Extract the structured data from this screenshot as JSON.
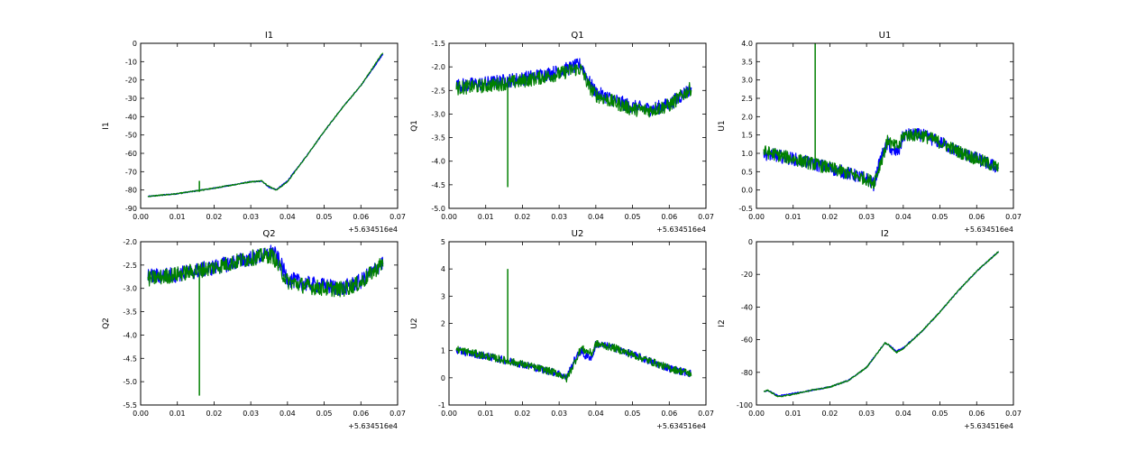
{
  "figure": {
    "x_offset_text": "+5.634516e4",
    "colors": {
      "series_a": "#0000ff",
      "series_b": "#008000"
    }
  },
  "chart_data": [
    {
      "type": "line",
      "id": "I1",
      "title": "I1",
      "xlabel": "",
      "ylabel": "I1",
      "xlim": [
        0.0,
        0.07
      ],
      "ylim": [
        -90,
        0
      ],
      "xticks": [
        "0.00",
        "0.01",
        "0.02",
        "0.03",
        "0.04",
        "0.05",
        "0.06",
        "0.07"
      ],
      "yticks": [
        "-90",
        "-80",
        "-70",
        "-60",
        "-50",
        "-40",
        "-30",
        "-20",
        "-10",
        "0"
      ],
      "noise": 0.3,
      "series": [
        {
          "name": "blue",
          "color": "#0000ff",
          "x": [
            0.002,
            0.01,
            0.02,
            0.03,
            0.033,
            0.035,
            0.037,
            0.04,
            0.045,
            0.05,
            0.055,
            0.06,
            0.066
          ],
          "y": [
            -83.5,
            -82,
            -79,
            -75.5,
            -75.2,
            -78.5,
            -79.8,
            -75,
            -62,
            -48,
            -35,
            -23,
            -6
          ]
        },
        {
          "name": "green",
          "color": "#008000",
          "x": [
            0.002,
            0.01,
            0.02,
            0.03,
            0.033,
            0.035,
            0.037,
            0.04,
            0.045,
            0.05,
            0.055,
            0.06,
            0.066
          ],
          "y": [
            -83.5,
            -82,
            -79,
            -75.5,
            -75,
            -78,
            -80,
            -75.5,
            -62,
            -48,
            -35,
            -23,
            -5
          ]
        }
      ],
      "spikes": [
        {
          "x": 0.016,
          "y1": -81,
          "y2": -75
        }
      ]
    },
    {
      "type": "line",
      "id": "Q1",
      "title": "Q1",
      "xlabel": "",
      "ylabel": "Q1",
      "xlim": [
        0.0,
        0.07
      ],
      "ylim": [
        -5.0,
        -1.5
      ],
      "xticks": [
        "0.00",
        "0.01",
        "0.02",
        "0.03",
        "0.04",
        "0.05",
        "0.06",
        "0.07"
      ],
      "yticks": [
        "-5.0",
        "-4.5",
        "-4.0",
        "-3.5",
        "-3.0",
        "-2.5",
        "-2.0",
        "-1.5"
      ],
      "noise": 0.15,
      "series": [
        {
          "name": "blue",
          "color": "#0000ff",
          "x": [
            0.002,
            0.01,
            0.02,
            0.03,
            0.034,
            0.036,
            0.038,
            0.04,
            0.045,
            0.05,
            0.055,
            0.06,
            0.066
          ],
          "y": [
            -2.4,
            -2.35,
            -2.25,
            -2.1,
            -2.0,
            -1.95,
            -2.3,
            -2.55,
            -2.7,
            -2.85,
            -2.9,
            -2.8,
            -2.45
          ]
        },
        {
          "name": "green",
          "color": "#008000",
          "x": [
            0.002,
            0.01,
            0.02,
            0.03,
            0.034,
            0.036,
            0.038,
            0.04,
            0.045,
            0.05,
            0.055,
            0.06,
            0.066
          ],
          "y": [
            -2.45,
            -2.4,
            -2.3,
            -2.15,
            -2.05,
            -2.05,
            -2.4,
            -2.6,
            -2.75,
            -2.9,
            -2.92,
            -2.82,
            -2.45
          ]
        }
      ],
      "spikes": [
        {
          "x": 0.016,
          "y1": -4.55,
          "y2": -2.3
        }
      ]
    },
    {
      "type": "line",
      "id": "U1",
      "title": "U1",
      "xlabel": "",
      "ylabel": "U1",
      "xlim": [
        0.0,
        0.07
      ],
      "ylim": [
        -0.5,
        4.0
      ],
      "xticks": [
        "0.00",
        "0.01",
        "0.02",
        "0.03",
        "0.04",
        "0.05",
        "0.06",
        "0.07"
      ],
      "yticks": [
        "-0.5",
        "0.0",
        "0.5",
        "1.0",
        "1.5",
        "2.0",
        "2.5",
        "3.0",
        "3.5",
        "4.0"
      ],
      "noise": 0.18,
      "series": [
        {
          "name": "blue",
          "color": "#0000ff",
          "x": [
            0.002,
            0.01,
            0.02,
            0.03,
            0.032,
            0.034,
            0.036,
            0.037,
            0.039,
            0.04,
            0.045,
            0.05,
            0.055,
            0.06,
            0.066
          ],
          "y": [
            1.0,
            0.85,
            0.6,
            0.3,
            0.15,
            0.9,
            1.3,
            1.0,
            1.1,
            1.5,
            1.5,
            1.3,
            1.05,
            0.85,
            0.6
          ]
        },
        {
          "name": "green",
          "color": "#008000",
          "x": [
            0.002,
            0.01,
            0.02,
            0.03,
            0.032,
            0.034,
            0.036,
            0.037,
            0.039,
            0.04,
            0.045,
            0.05,
            0.055,
            0.06,
            0.066
          ],
          "y": [
            1.05,
            0.85,
            0.6,
            0.3,
            0.2,
            0.8,
            1.4,
            1.2,
            1.2,
            1.5,
            1.5,
            1.3,
            1.05,
            0.85,
            0.6
          ]
        }
      ],
      "spikes": [
        {
          "x": 0.016,
          "y1": 0.7,
          "y2": 4.0
        }
      ]
    },
    {
      "type": "line",
      "id": "Q2",
      "title": "Q2",
      "xlabel": "",
      "ylabel": "Q2",
      "xlim": [
        0.0,
        0.07
      ],
      "ylim": [
        -5.5,
        -2.0
      ],
      "xticks": [
        "0.00",
        "0.01",
        "0.02",
        "0.03",
        "0.04",
        "0.05",
        "0.06",
        "0.07"
      ],
      "yticks": [
        "-5.5",
        "-5.0",
        "-4.5",
        "-4.0",
        "-3.5",
        "-3.0",
        "-2.5",
        "-2.0"
      ],
      "noise": 0.17,
      "series": [
        {
          "name": "blue",
          "color": "#0000ff",
          "x": [
            0.002,
            0.01,
            0.02,
            0.03,
            0.034,
            0.036,
            0.038,
            0.04,
            0.045,
            0.05,
            0.055,
            0.06,
            0.066
          ],
          "y": [
            -2.75,
            -2.7,
            -2.55,
            -2.35,
            -2.3,
            -2.2,
            -2.45,
            -2.8,
            -2.9,
            -2.95,
            -3.0,
            -2.85,
            -2.45
          ]
        },
        {
          "name": "green",
          "color": "#008000",
          "x": [
            0.002,
            0.01,
            0.02,
            0.03,
            0.034,
            0.036,
            0.038,
            0.04,
            0.045,
            0.05,
            0.055,
            0.06,
            0.066
          ],
          "y": [
            -2.8,
            -2.7,
            -2.55,
            -2.35,
            -2.3,
            -2.3,
            -2.6,
            -2.85,
            -2.95,
            -3.0,
            -3.02,
            -2.88,
            -2.45
          ]
        }
      ],
      "spikes": [
        {
          "x": 0.016,
          "y1": -5.3,
          "y2": -2.6
        }
      ]
    },
    {
      "type": "line",
      "id": "U2",
      "title": "U2",
      "xlabel": "",
      "ylabel": "U2",
      "xlim": [
        0.0,
        0.07
      ],
      "ylim": [
        -1,
        5
      ],
      "xticks": [
        "0.00",
        "0.01",
        "0.02",
        "0.03",
        "0.04",
        "0.05",
        "0.06",
        "0.07"
      ],
      "yticks": [
        "-1",
        "0",
        "1",
        "2",
        "3",
        "4",
        "5"
      ],
      "noise": 0.14,
      "series": [
        {
          "name": "blue",
          "color": "#0000ff",
          "x": [
            0.002,
            0.01,
            0.02,
            0.03,
            0.032,
            0.034,
            0.036,
            0.037,
            0.039,
            0.04,
            0.045,
            0.05,
            0.055,
            0.06,
            0.066
          ],
          "y": [
            1.0,
            0.8,
            0.5,
            0.15,
            0.0,
            0.6,
            1.0,
            0.8,
            0.75,
            1.25,
            1.1,
            0.85,
            0.6,
            0.35,
            0.15
          ]
        },
        {
          "name": "green",
          "color": "#008000",
          "x": [
            0.002,
            0.01,
            0.02,
            0.03,
            0.032,
            0.034,
            0.036,
            0.037,
            0.039,
            0.04,
            0.045,
            0.05,
            0.055,
            0.06,
            0.066
          ],
          "y": [
            1.05,
            0.8,
            0.5,
            0.15,
            -0.05,
            0.5,
            1.1,
            1.0,
            0.9,
            1.25,
            1.1,
            0.85,
            0.6,
            0.35,
            0.15
          ]
        }
      ],
      "spikes": [
        {
          "x": 0.016,
          "y1": 0.5,
          "y2": 4.0
        }
      ]
    },
    {
      "type": "line",
      "id": "I2",
      "title": "I2",
      "xlabel": "",
      "ylabel": "I2",
      "xlim": [
        0.0,
        0.07
      ],
      "ylim": [
        -100,
        0
      ],
      "xticks": [
        "0.00",
        "0.01",
        "0.02",
        "0.03",
        "0.04",
        "0.05",
        "0.06",
        "0.07"
      ],
      "yticks": [
        "-100",
        "-80",
        "-60",
        "-40",
        "-20",
        "0"
      ],
      "noise": 0.4,
      "series": [
        {
          "name": "blue",
          "color": "#0000ff",
          "x": [
            0.002,
            0.003,
            0.006,
            0.01,
            0.015,
            0.02,
            0.025,
            0.03,
            0.033,
            0.035,
            0.036,
            0.038,
            0.04,
            0.045,
            0.05,
            0.055,
            0.06,
            0.066
          ],
          "y": [
            -92,
            -91,
            -94.5,
            -93,
            -91,
            -89,
            -85,
            -77,
            -68,
            -62,
            -63,
            -67,
            -65,
            -55,
            -43,
            -30,
            -18,
            -6
          ]
        },
        {
          "name": "green",
          "color": "#008000",
          "x": [
            0.002,
            0.003,
            0.006,
            0.01,
            0.015,
            0.02,
            0.025,
            0.03,
            0.033,
            0.035,
            0.036,
            0.038,
            0.04,
            0.045,
            0.05,
            0.055,
            0.06,
            0.066
          ],
          "y": [
            -92,
            -91,
            -95,
            -93.5,
            -91,
            -89,
            -85,
            -77,
            -68,
            -62,
            -63,
            -68,
            -65.5,
            -55,
            -43,
            -30,
            -18,
            -6
          ]
        }
      ],
      "spikes": []
    }
  ]
}
